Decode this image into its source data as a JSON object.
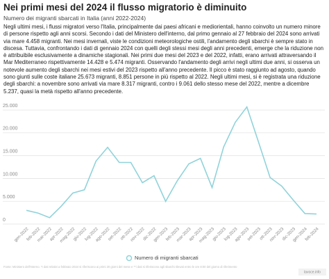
{
  "chart_data": {
    "type": "line",
    "title": "Nei primi mesi del 2024 il flusso migratorio è diminuito",
    "subtitle": "Numero dei migranti sbarcati in Italia (anni 2022-2024)",
    "description": "Negli ultimi mesi, i flussi migratori verso l'Italia, principalmente dai paesi africani e mediorientali, hanno coinvolto un numero minore di persone rispetto agli anni scorsi. Secondo i dati del Ministero dell'interno, dal primo gennaio al 27 febbraio del 2024 sono arrivati via mare 4.458 migranti. Nei mesi invernali, viste le condizioni meteorologiche ostili, l'andamento degli sbarchi è sempre stato in discesa. Tuttavia, confrontando i dati di gennaio 2024 con quelli degli stessi mesi degli anni precedenti, emerge che la riduzione non è attribuibile esclusivamente a dinamiche stagionali. Nei primi due mesi del 2023 e del 2022, infatti, erano arrivati attraversando il Mar Mediterraneo rispettivamente 14.428 e 5.474 migranti. Osservando l'andamento degli arrivi negli ultimi due anni, si osserva un notevole aumento degli sbarchi nei mesi estivi del 2023 rispetto all'anno precedente. Il picco è stato raggiunto ad agosto, quando sono giunti sulle coste italiane 25.673 migranti, 8.851 persone in più rispetto al 2022. Negli ultimi mesi, si è registrata una riduzione degli sbarchi: a novembre sono arrivati via mare 8.317 migranti, contro i 9.061 dello stesso mese del 2022, mentre a dicembre 5.237, quasi la metà rispetto all'anno precedente.",
    "categories": [
      "gen-2022",
      "feb-2022",
      "mar-2022",
      "apr-2022",
      "mag-2022",
      "giu-2022",
      "lug-2022",
      "ago-2022",
      "set-2022",
      "ott-2022",
      "nov-2022",
      "dic-2022",
      "gen-2023",
      "feb-2023",
      "mar-2023",
      "apr-2023",
      "mag-2023",
      "giu-2023",
      "lug-2023",
      "ago-2023",
      "set-2023",
      "ott-2023",
      "nov-2023",
      "dic-2023",
      "gen-2024",
      "feb-2024"
    ],
    "series": [
      {
        "name": "Numero di migranti sbarcati",
        "color": "#8fd3da",
        "values": [
          3000,
          2400,
          1400,
          3900,
          6800,
          7500,
          13800,
          16822,
          13500,
          13500,
          9061,
          10600,
          4959,
          9469,
          13200,
          14400,
          8000,
          16900,
          22300,
          25673,
          18000,
          10200,
          8317,
          5237,
          2300,
          2200
        ]
      }
    ],
    "ylim": [
      0,
      27000
    ],
    "yticks": [
      0,
      {
        "value": 5000,
        "label": "5.000"
      },
      {
        "value": 10000,
        "label": "10.000"
      },
      {
        "value": 15000,
        "label": "15.000"
      },
      {
        "value": 20000,
        "label": "20.000"
      },
      {
        "value": 25000,
        "label": "25.000"
      }
    ],
    "grid": true,
    "source": "Fonte: Ministero dell'Interno. *I dati relativi a febbraio 2024 si riferiscono ai primi 20 giorni del mese e **i dati si riferiscono agli sbarchi rilevati entro le ore 8:00 del giorno di riferimento",
    "logo": "lavoce.info"
  }
}
